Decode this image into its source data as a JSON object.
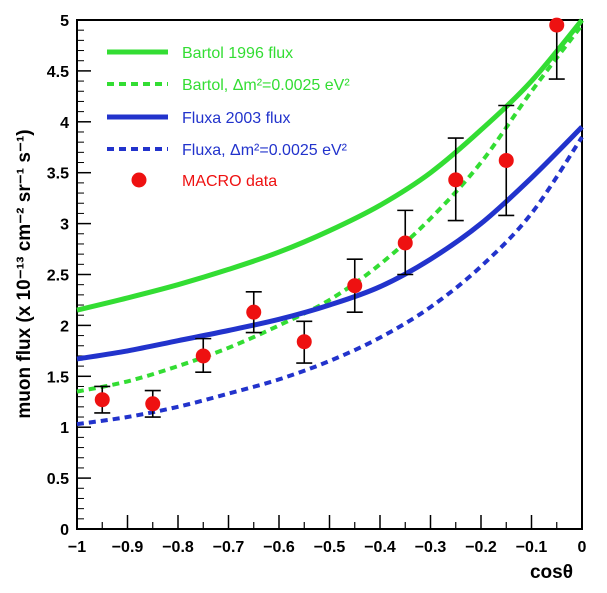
{
  "chart_data": {
    "type": "line",
    "xlabel": "cosθ",
    "ylabel": "muon flux (x 10⁻¹³ cm⁻² sr⁻¹ s⁻¹)",
    "xlim": [
      -1,
      0
    ],
    "ylim": [
      0,
      5
    ],
    "x_ticks": [
      "−1",
      "−0.9",
      "−0.8",
      "−0.7",
      "−0.6",
      "−0.5",
      "−0.4",
      "−0.3",
      "−0.2",
      "−0.1",
      "0"
    ],
    "y_ticks": [
      "0",
      "0.5",
      "1",
      "1.5",
      "2",
      "2.5",
      "3",
      "3.5",
      "4",
      "4.5",
      "5"
    ],
    "legend_position": "top-left",
    "series": [
      {
        "name": "Bartol 1996 flux",
        "style": "solid",
        "color": "#33dd33",
        "x": [
          -1.0,
          -0.9,
          -0.8,
          -0.7,
          -0.6,
          -0.5,
          -0.4,
          -0.3,
          -0.2,
          -0.1,
          0.0
        ],
        "y": [
          2.15,
          2.27,
          2.4,
          2.55,
          2.72,
          2.93,
          3.18,
          3.5,
          3.92,
          4.4,
          5.0
        ]
      },
      {
        "name": "Bartol, Δm²=0.0025 eV²",
        "style": "dashed",
        "color": "#33dd33",
        "x": [
          -1.0,
          -0.9,
          -0.8,
          -0.7,
          -0.6,
          -0.5,
          -0.4,
          -0.3,
          -0.2,
          -0.1,
          0.0
        ],
        "y": [
          1.35,
          1.45,
          1.6,
          1.78,
          2.0,
          2.25,
          2.6,
          3.05,
          3.6,
          4.3,
          4.95
        ]
      },
      {
        "name": "Fluxa 2003 flux",
        "style": "solid",
        "color": "#2233cc",
        "x": [
          -1.0,
          -0.9,
          -0.8,
          -0.7,
          -0.6,
          -0.5,
          -0.4,
          -0.3,
          -0.2,
          -0.1,
          0.0
        ],
        "y": [
          1.67,
          1.75,
          1.85,
          1.95,
          2.06,
          2.2,
          2.38,
          2.65,
          3.0,
          3.45,
          3.95
        ]
      },
      {
        "name": "Fluxa, Δm²=0.0025 eV²",
        "style": "dashed",
        "color": "#2233cc",
        "x": [
          -1.0,
          -0.9,
          -0.8,
          -0.7,
          -0.6,
          -0.5,
          -0.4,
          -0.3,
          -0.2,
          -0.1,
          0.0
        ],
        "y": [
          1.03,
          1.1,
          1.2,
          1.33,
          1.47,
          1.65,
          1.88,
          2.18,
          2.58,
          3.1,
          3.85
        ]
      },
      {
        "name": "MACRO data",
        "style": "points",
        "color": "#ee1111",
        "x": [
          -0.95,
          -0.85,
          -0.75,
          -0.65,
          -0.55,
          -0.45,
          -0.35,
          -0.25,
          -0.15,
          -0.05
        ],
        "y": [
          1.27,
          1.23,
          1.7,
          2.13,
          1.84,
          2.39,
          2.81,
          3.43,
          3.62,
          4.95
        ],
        "y_low": [
          1.14,
          1.1,
          1.54,
          1.93,
          1.63,
          2.13,
          2.5,
          3.03,
          3.08,
          4.42
        ],
        "y_high": [
          1.4,
          1.36,
          1.87,
          2.33,
          2.04,
          2.65,
          3.13,
          3.84,
          4.16,
          5.0
        ]
      }
    ]
  }
}
